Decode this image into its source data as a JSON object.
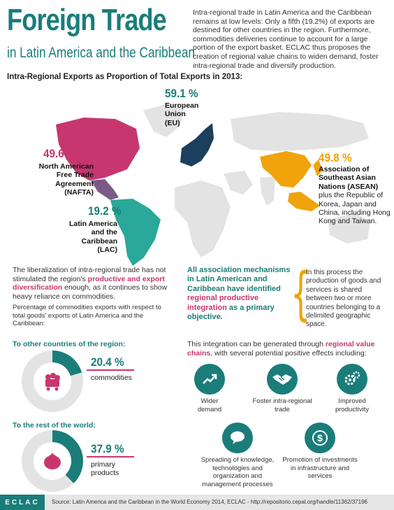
{
  "header": {
    "title": "Foreign Trade",
    "subtitle": "in Latin America and the Caribbean",
    "intro": "Intra-regional trade in Latin America and the Caribbean remains at low levels: Only a fifth (19.2%) of exports are destined for other countries in the region. Furthermore, commodities deliveries continue to account for a large portion of the export basket. ECLAC thus proposes the creation of regional value chains to widen demand, foster intra-regional trade  and diversify production."
  },
  "map": {
    "heading": "Intra-Regional Exports as Proportion of Total Exports in 2013:",
    "colors": {
      "nafta": "#c7366f",
      "eu": "#1b3f5c",
      "asean": "#f0a30a",
      "lac": "#2aa89a",
      "land": "#e3e3e3"
    },
    "eu": {
      "pct": "59.1 %",
      "l1": "European",
      "l2": "Union",
      "l3": "(EU)"
    },
    "nafta": {
      "pct": "49.6 %",
      "l1": "North American",
      "l2": "Free Trade",
      "l3": "Agreement",
      "l4": "(NAFTA)"
    },
    "asean": {
      "pct": "49.8 %",
      "l1": "Association of",
      "l2": "Southeast Asian",
      "l3": "Nations (ASEAN)",
      "e1": "plus the Republic of",
      "e2": "Korea, Japan and",
      "e3": "China, including Hong",
      "e4": "Kong and Taiwan."
    },
    "lac": {
      "pct": "19.2 %",
      "l1": "Latin America",
      "l2": "and the",
      "l3": "Caribbean",
      "l4": "(LAC)"
    }
  },
  "middle": {
    "left_a": "The liberalization of intra-regional trade has not stimulated the region's ",
    "left_hl": "productive and export diversification",
    "left_b": " enough, as it continues to show heavy reliance on commodities.",
    "note": "Percentage of commodities exports with respect to total goods' exports of Latin America and the Caribbean:",
    "center_a": "All association mechanisms in Latin American and Caribbean have identified ",
    "center_hl": "regional productive integration",
    "center_b": " as a primary objective.",
    "right": "In this process the production of goods and services is shared between two or more countries belonging to a delimited geographic space."
  },
  "chart_data": [
    {
      "type": "pie",
      "title": "To other countries of the region:",
      "categories": [
        "commodities",
        ""
      ],
      "values": [
        20.4,
        79.6
      ],
      "value_label": "20.4 %",
      "label": "commodities"
    },
    {
      "type": "pie",
      "title": "To the rest of the world:",
      "categories": [
        "primary products",
        ""
      ],
      "values": [
        37.9,
        62.1
      ],
      "value_label": "37.9 %",
      "label_l1": "primary",
      "label_l2": "products"
    }
  ],
  "chains": {
    "intro_a": "This integration can be generated through ",
    "intro_hl": "regional value chains",
    "intro_b": ", with several potential positive effects including:",
    "items": [
      {
        "icon": "chart-up-icon",
        "l1": "Wider",
        "l2": "demand"
      },
      {
        "icon": "handshake-icon",
        "l1": "Foster intra-regional",
        "l2": "trade"
      },
      {
        "icon": "gears-icon",
        "l1": "Improved",
        "l2": "productivity"
      },
      {
        "icon": "speech-bubble-icon",
        "l1": "Spreading of knowledge,",
        "l2": "technologies and",
        "l3": "organization and",
        "l4": "management processes"
      },
      {
        "icon": "dollar-icon",
        "l1": "Promotion of investments",
        "l2": "in infrastructure and",
        "l3": "services"
      }
    ]
  },
  "footer": {
    "logo": "ECLAC",
    "source": "Source:  Latin America and the Caribbean in the World Economy 2014, ECLAC  -  http://repositorio.cepal.org/handle/11362/37196"
  }
}
